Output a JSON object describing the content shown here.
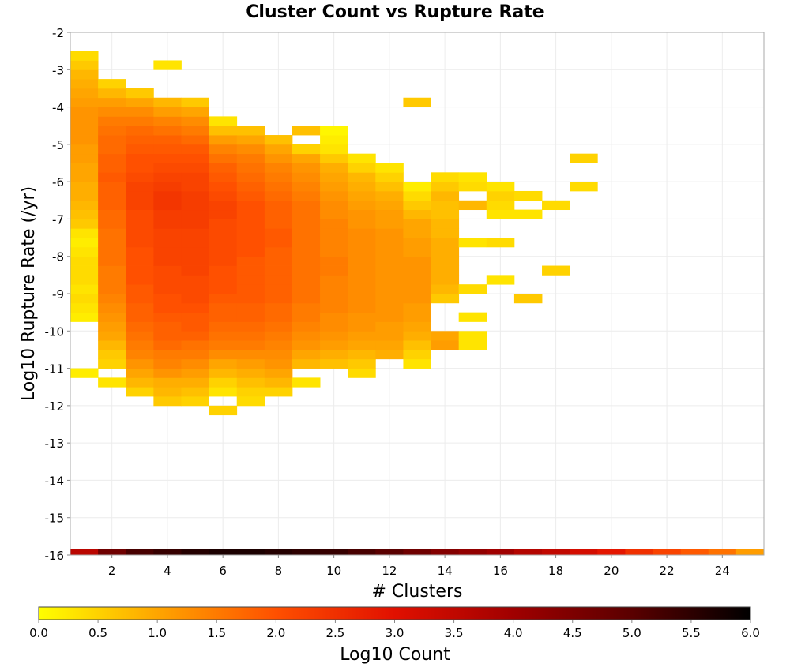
{
  "chart_data": {
    "type": "heatmap",
    "title": "Cluster Count vs Rupture Rate",
    "xlabel": "# Clusters",
    "ylabel": "Log10 Rupture Rate (/yr)",
    "colorbar_label": "Log10 Count",
    "xlim": [
      0.5,
      25.5
    ],
    "ylim": [
      -16,
      -2
    ],
    "x_ticks": [
      2,
      4,
      6,
      8,
      10,
      12,
      14,
      16,
      18,
      20,
      22,
      24
    ],
    "y_ticks": [
      -2,
      -3,
      -4,
      -5,
      -6,
      -7,
      -8,
      -9,
      -10,
      -11,
      -12,
      -13,
      -14,
      -15,
      -16
    ],
    "colorbar_ticks": [
      "0.0",
      "0.5",
      "1.0",
      "1.5",
      "2.0",
      "2.5",
      "3.0",
      "3.5",
      "4.0",
      "4.5",
      "5.0",
      "5.5",
      "6.0"
    ],
    "colorbar_range": [
      0,
      6
    ],
    "colormap": [
      "#ffff00",
      "#ffa500",
      "#ff5000",
      "#e11000",
      "#a00000",
      "#5a0000",
      "#000000"
    ],
    "grid": true,
    "bin_x": 1,
    "bin_y": 0.25,
    "columns": [
      {
        "x": 1,
        "ymin": -11.25,
        "values": [
          0.2,
          0,
          0,
          0,
          0,
          0,
          0.2,
          0.3,
          0.4,
          0.3,
          0.4,
          0.4,
          0.4,
          0.3,
          0.2,
          0.3,
          0.6,
          0.7,
          0.8,
          0.9,
          0.9,
          1.0,
          1.0,
          1.1,
          1.1,
          1.2,
          1.2,
          1.2,
          1.2,
          1.1,
          1.0,
          0.9,
          0.8,
          0.6,
          0.4
        ]
      },
      {
        "x": 2,
        "ymin": -11.5,
        "values": [
          0.3,
          0,
          0.5,
          0.6,
          0.8,
          1.0,
          1.1,
          1.2,
          1.3,
          1.4,
          1.5,
          1.5,
          1.5,
          1.6,
          1.6,
          1.6,
          1.6,
          1.7,
          1.7,
          1.8,
          1.8,
          1.8,
          1.9,
          1.8,
          1.8,
          1.7,
          1.7,
          1.6,
          1.5,
          1.3,
          1.1,
          0.8,
          0.5
        ]
      },
      {
        "x": 3,
        "ymin": -11.75,
        "values": [
          0.5,
          0.8,
          1.0,
          1.2,
          1.4,
          1.5,
          1.6,
          1.7,
          1.8,
          1.8,
          1.9,
          1.9,
          2.0,
          2.0,
          2.0,
          2.0,
          2.1,
          2.1,
          2.1,
          2.1,
          2.2,
          2.2,
          2.2,
          2.1,
          2.0,
          2.0,
          1.9,
          1.8,
          1.7,
          1.5,
          1.3,
          1.0,
          0.6
        ]
      },
      {
        "x": 4,
        "ymin": -12.0,
        "values": [
          0.6,
          0.8,
          0.9,
          1.2,
          1.4,
          1.5,
          1.7,
          1.8,
          1.8,
          1.9,
          2.0,
          2.0,
          2.1,
          2.1,
          2.1,
          2.2,
          2.2,
          2.2,
          2.2,
          2.3,
          2.3,
          2.4,
          2.4,
          2.3,
          2.2,
          2.1,
          2.0,
          1.9,
          1.8,
          1.6,
          1.4,
          1.1,
          0.8,
          0,
          0,
          0,
          0.3
        ]
      },
      {
        "x": 5,
        "ymin": -12.0,
        "values": [
          0.5,
          0.7,
          0.9,
          1.1,
          1.3,
          1.5,
          1.6,
          1.8,
          1.9,
          1.9,
          2.0,
          2.1,
          2.1,
          2.1,
          2.2,
          2.2,
          2.2,
          2.2,
          2.2,
          2.3,
          2.3,
          2.3,
          2.3,
          2.2,
          2.2,
          2.1,
          2.0,
          1.9,
          1.7,
          1.5,
          1.3,
          1.0,
          0.6
        ]
      },
      {
        "x": 6,
        "ymin": -12.25,
        "values": [
          0.5,
          0,
          0.3,
          0.5,
          0.8,
          1.0,
          1.3,
          1.5,
          1.6,
          1.7,
          1.8,
          1.8,
          1.9,
          2.0,
          2.0,
          2.0,
          2.1,
          2.1,
          2.1,
          2.1,
          2.1,
          2.2,
          2.2,
          2.1,
          2.0,
          1.9,
          1.8,
          1.6,
          1.4,
          1.1,
          0.7,
          0.3
        ]
      },
      {
        "x": 7,
        "ymin": -12.0,
        "values": [
          0.4,
          0.5,
          0.7,
          0.9,
          1.1,
          1.3,
          1.5,
          1.6,
          1.7,
          1.8,
          1.8,
          1.9,
          1.9,
          1.9,
          1.9,
          1.9,
          2.0,
          2.0,
          2.0,
          2.0,
          2.0,
          2.0,
          1.9,
          1.8,
          1.7,
          1.6,
          1.5,
          1.3,
          1.0,
          0.7
        ]
      },
      {
        "x": 8,
        "ymin": -11.75,
        "values": [
          0.5,
          0.8,
          1.0,
          1.2,
          1.3,
          1.4,
          1.5,
          1.6,
          1.7,
          1.7,
          1.8,
          1.8,
          1.8,
          1.8,
          1.8,
          1.8,
          1.9,
          1.9,
          1.8,
          1.8,
          1.8,
          1.7,
          1.6,
          1.5,
          1.4,
          1.2,
          1.0,
          0.7
        ]
      },
      {
        "x": 9,
        "ymin": -11.5,
        "values": [
          0.3,
          0,
          0.8,
          1.0,
          1.2,
          1.3,
          1.4,
          1.5,
          1.5,
          1.6,
          1.6,
          1.6,
          1.6,
          1.6,
          1.6,
          1.6,
          1.6,
          1.6,
          1.6,
          1.6,
          1.5,
          1.4,
          1.3,
          1.2,
          1.0,
          0.5,
          0,
          0.7
        ]
      },
      {
        "x": 10,
        "ymin": -11.0,
        "values": [
          0.7,
          0.9,
          1.1,
          1.2,
          1.3,
          1.3,
          1.4,
          1.4,
          1.4,
          1.4,
          1.5,
          1.5,
          1.4,
          1.4,
          1.4,
          1.4,
          1.3,
          1.3,
          1.2,
          1.1,
          1.0,
          0.9,
          0.6,
          0.3,
          0.2,
          0.1
        ]
      },
      {
        "x": 11,
        "ymin": -11.25,
        "values": [
          0.4,
          0.6,
          0.8,
          1.0,
          1.1,
          1.2,
          1.2,
          1.3,
          1.3,
          1.3,
          1.3,
          1.3,
          1.3,
          1.3,
          1.3,
          1.3,
          1.2,
          1.2,
          1.1,
          1.0,
          0.9,
          0.8,
          0.5,
          0.3
        ]
      },
      {
        "x": 12,
        "ymin": -10.75,
        "values": [
          0.9,
          1.0,
          1.1,
          1.1,
          1.2,
          1.2,
          1.2,
          1.2,
          1.2,
          1.2,
          1.2,
          1.2,
          1.2,
          1.2,
          1.1,
          1.1,
          1.0,
          0.9,
          0.7,
          0.5,
          0.3
        ]
      },
      {
        "x": 13,
        "ymin": -11.0,
        "values": [
          0.3,
          0.5,
          0.7,
          0.9,
          1.0,
          1.1,
          1.1,
          1.2,
          1.2,
          1.2,
          1.2,
          1.2,
          1.1,
          1.1,
          1.0,
          1.0,
          0.8,
          0.6,
          0.4,
          0.2,
          0,
          0,
          0,
          0,
          0,
          0,
          0,
          0,
          0.6
        ]
      },
      {
        "x": 14,
        "ymin": -10.5,
        "values": [
          1.1,
          1.0,
          0,
          0,
          0,
          0.6,
          0.8,
          0.9,
          0.9,
          0.9,
          0.9,
          0.9,
          0.8,
          0.8,
          0.7,
          0.7,
          0.8,
          0.6,
          0.4
        ]
      },
      {
        "x": 15,
        "ymin": -10.5,
        "values": [
          0.3,
          0.3,
          0,
          0.3,
          0,
          0,
          0.4,
          0,
          0,
          0,
          0,
          0.3,
          0,
          0,
          0,
          0.8,
          0,
          0.4,
          0.3
        ]
      },
      {
        "x": 16,
        "ymin": -8.75,
        "values": [
          0.3,
          0,
          0,
          0,
          0.4,
          0,
          0,
          0.3,
          0.4,
          0.5,
          0.3
        ]
      },
      {
        "x": 17,
        "ymin": -9.25,
        "values": [
          0.6,
          0,
          0,
          0,
          0,
          0,
          0,
          0,
          0,
          0.3,
          0,
          0.4
        ]
      },
      {
        "x": 18,
        "ymin": -8.5,
        "values": [
          0.5,
          0,
          0,
          0,
          0,
          0,
          0,
          0.4
        ]
      },
      {
        "x": 19,
        "ymin": -6.25,
        "values": [
          0.4,
          0,
          0,
          0.5
        ]
      }
    ],
    "marginal_row": {
      "y_range": [
        -16,
        -15.85
      ],
      "values": [
        3.6,
        4.7,
        5.2,
        5.4,
        5.6,
        5.7,
        5.7,
        5.6,
        5.5,
        5.4,
        5.2,
        5.0,
        4.7,
        4.4,
        4.2,
        4.0,
        3.7,
        3.5,
        3.2,
        2.9,
        2.5,
        2.2,
        1.9,
        1.6,
        1.1
      ]
    }
  }
}
